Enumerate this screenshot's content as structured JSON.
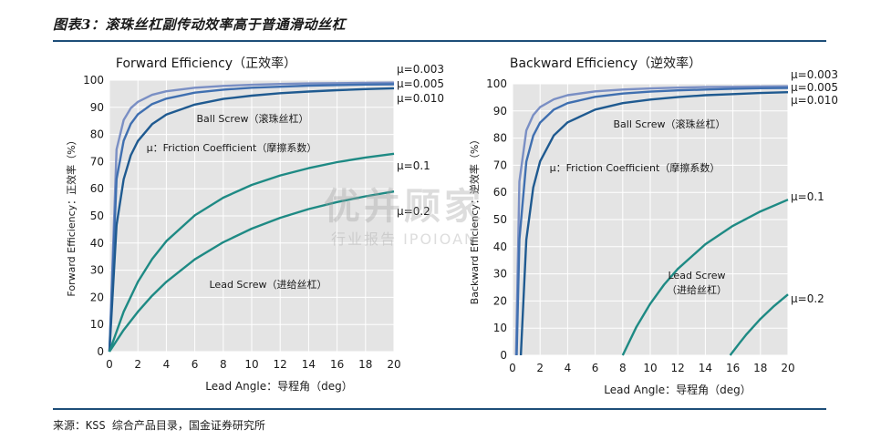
{
  "figure": {
    "title": "图表3：滚珠丝杠副传动效率高于普通滑动丝杠",
    "source": "来源：KSS 综合产品目录，国金证券研究所",
    "watermark": [
      "优并顾家",
      "行业报告 IPOIOAN"
    ]
  },
  "colors": {
    "plot_bg": "#e4e4e4",
    "grid": "#ffffff",
    "mu_0_003": "#7a8fc4",
    "mu_0_005": "#3f6fb0",
    "mu_0_010": "#1f5a90",
    "mu_0_1": "#1e8a84",
    "mu_0_2": "#1e8a84",
    "rule": "#1e4e79"
  },
  "chart_data": [
    {
      "type": "line",
      "title": "Forward Efficiency（正效率）",
      "xlabel": "Lead Angle：导程角（deg）",
      "ylabel": "Forward Efficiency：正效率（%）",
      "xlim": [
        0,
        20
      ],
      "ylim": [
        0,
        100
      ],
      "xticks": [
        0,
        2,
        4,
        6,
        8,
        10,
        12,
        14,
        16,
        18,
        20
      ],
      "yticks": [
        0,
        10,
        20,
        30,
        40,
        50,
        60,
        70,
        80,
        90,
        100
      ],
      "grid": true,
      "series": [
        {
          "name": "μ=0.003",
          "color": "#7a8fc4",
          "x": [
            0,
            0.5,
            1,
            1.5,
            2,
            3,
            4,
            6,
            8,
            10,
            12,
            14,
            16,
            18,
            20
          ],
          "y": [
            0,
            74.5,
            85.3,
            89.7,
            92.0,
            94.6,
            95.9,
            97.2,
            97.9,
            98.3,
            98.6,
            98.8,
            98.9,
            99.0,
            99.1
          ]
        },
        {
          "name": "μ=0.005",
          "color": "#3f6fb0",
          "x": [
            0,
            0.5,
            1,
            1.5,
            2,
            3,
            4,
            6,
            8,
            10,
            12,
            14,
            16,
            18,
            20
          ],
          "y": [
            0,
            63.6,
            77.7,
            83.9,
            87.4,
            91.2,
            93.2,
            95.4,
            96.5,
            97.2,
            97.6,
            98.0,
            98.2,
            98.4,
            98.5
          ]
        },
        {
          "name": "μ=0.010",
          "color": "#1f5a90",
          "x": [
            0,
            0.5,
            1,
            1.5,
            2,
            3,
            4,
            6,
            8,
            10,
            12,
            14,
            16,
            18,
            20
          ],
          "y": [
            0,
            46.6,
            63.5,
            72.3,
            77.6,
            83.8,
            87.3,
            91.0,
            93.1,
            94.3,
            95.2,
            95.8,
            96.3,
            96.7,
            97.0
          ]
        },
        {
          "name": "μ=0.1",
          "color": "#1e8a84",
          "x": [
            0,
            1,
            2,
            3,
            4,
            6,
            8,
            10,
            12,
            14,
            16,
            18,
            20
          ],
          "y": [
            0,
            14.7,
            25.7,
            34.1,
            40.7,
            50.2,
            56.7,
            61.4,
            64.9,
            67.6,
            69.8,
            71.5,
            72.9
          ]
        },
        {
          "name": "μ=0.2",
          "color": "#1e8a84",
          "x": [
            0,
            1,
            2,
            3,
            4,
            6,
            8,
            10,
            12,
            14,
            16,
            18,
            20
          ],
          "y": [
            0,
            8.0,
            14.7,
            20.6,
            25.7,
            34.0,
            40.3,
            45.3,
            49.3,
            52.5,
            55.1,
            57.2,
            59.0
          ]
        }
      ],
      "annotations": [
        "Ball Screw（滚珠丝杠）",
        "μ：Friction Coefficient（摩擦系数）",
        "Lead Screw（进给丝杠）"
      ]
    },
    {
      "type": "line",
      "title": "Backward Efficiency（逆效率）",
      "xlabel": "Lead Angle：导程角（deg）",
      "ylabel": "Backward Efficiency：逆效率（%）",
      "xlim": [
        0,
        20
      ],
      "ylim": [
        0,
        100
      ],
      "xticks": [
        0,
        2,
        4,
        6,
        8,
        10,
        12,
        14,
        16,
        18,
        20
      ],
      "yticks": [
        0,
        10,
        20,
        30,
        40,
        50,
        60,
        70,
        80,
        90,
        100
      ],
      "grid": true,
      "series": [
        {
          "name": "μ=0.003",
          "color": "#7a8fc4",
          "x": [
            0.25,
            0.5,
            1,
            1.5,
            2,
            3,
            4,
            6,
            8,
            10,
            12,
            14,
            16,
            18,
            20
          ],
          "y": [
            0,
            64.0,
            82.8,
            88.5,
            91.4,
            94.3,
            95.8,
            97.2,
            97.9,
            98.3,
            98.6,
            98.8,
            98.9,
            99.0,
            99.1
          ]
        },
        {
          "name": "μ=0.005",
          "color": "#3f6fb0",
          "x": [
            0.3,
            0.5,
            1,
            1.5,
            2,
            3,
            4,
            6,
            8,
            10,
            12,
            14,
            16,
            18,
            20
          ],
          "y": [
            0,
            42.7,
            71.3,
            80.9,
            85.7,
            90.5,
            92.9,
            95.2,
            96.4,
            97.1,
            97.6,
            97.9,
            98.2,
            98.4,
            98.5
          ]
        },
        {
          "name": "μ=0.010",
          "color": "#1f5a90",
          "x": [
            0.6,
            1,
            1.5,
            2,
            3,
            4,
            6,
            8,
            10,
            12,
            14,
            16,
            18,
            20
          ],
          "y": [
            0,
            42.6,
            61.8,
            71.4,
            81.0,
            85.8,
            90.5,
            92.9,
            94.2,
            95.1,
            95.8,
            96.2,
            96.6,
            96.9
          ]
        },
        {
          "name": "μ=0.1",
          "color": "#1e8a84",
          "x": [
            8,
            9,
            10,
            11,
            12,
            14,
            16,
            18,
            20
          ],
          "y": [
            0,
            10.5,
            19.0,
            26.0,
            31.8,
            40.9,
            47.7,
            53.0,
            57.3
          ]
        },
        {
          "name": "μ=0.2",
          "color": "#1e8a84",
          "x": [
            15.8,
            16.5,
            17,
            18,
            19,
            20
          ],
          "y": [
            0,
            4.6,
            7.8,
            13.4,
            18.2,
            22.4
          ]
        }
      ],
      "annotations": [
        "Ball Screw（滚珠丝杠）",
        "μ：Friction Coefficient（摩擦系数）",
        "Lead Screw",
        "（进给丝杠）"
      ]
    }
  ]
}
